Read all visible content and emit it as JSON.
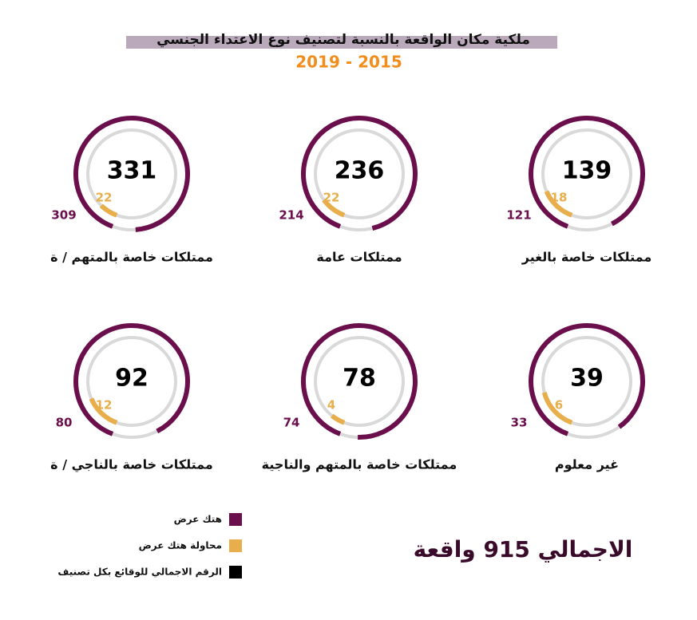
{
  "chart_data": {
    "type": "radial-gauge",
    "title": "ملكية مكان الواقعة بالنسبة لتصنيف نوع الاعتداء الجنسي",
    "subtitle": "2019 - 2015",
    "categories": [
      "ممتلكات خاصة بالغير",
      "ممتلكات عامة",
      "ممتلكات خاصة بالمتهم / ة",
      "غير معلوم",
      "ممتلكات خاصة بالمتهم والناجية",
      "ممتلكات خاصة بالناجي / ة"
    ],
    "series": [
      {
        "name": "هتك عرض",
        "color": "#6b0f4c",
        "values": [
          121,
          214,
          309,
          33,
          74,
          80
        ]
      },
      {
        "name": "محاولة هتك عرض",
        "color": "#e8ae4c",
        "values": [
          18,
          22,
          22,
          6,
          4,
          12
        ]
      },
      {
        "name": "الرقم الاجمالي للوقائع بكل تصنيف",
        "color": "#000000",
        "values": [
          139,
          236,
          331,
          39,
          78,
          92
        ]
      }
    ],
    "track_color": "#d9d9d9",
    "annotation": "الاجمالي 915 واقعة"
  }
}
